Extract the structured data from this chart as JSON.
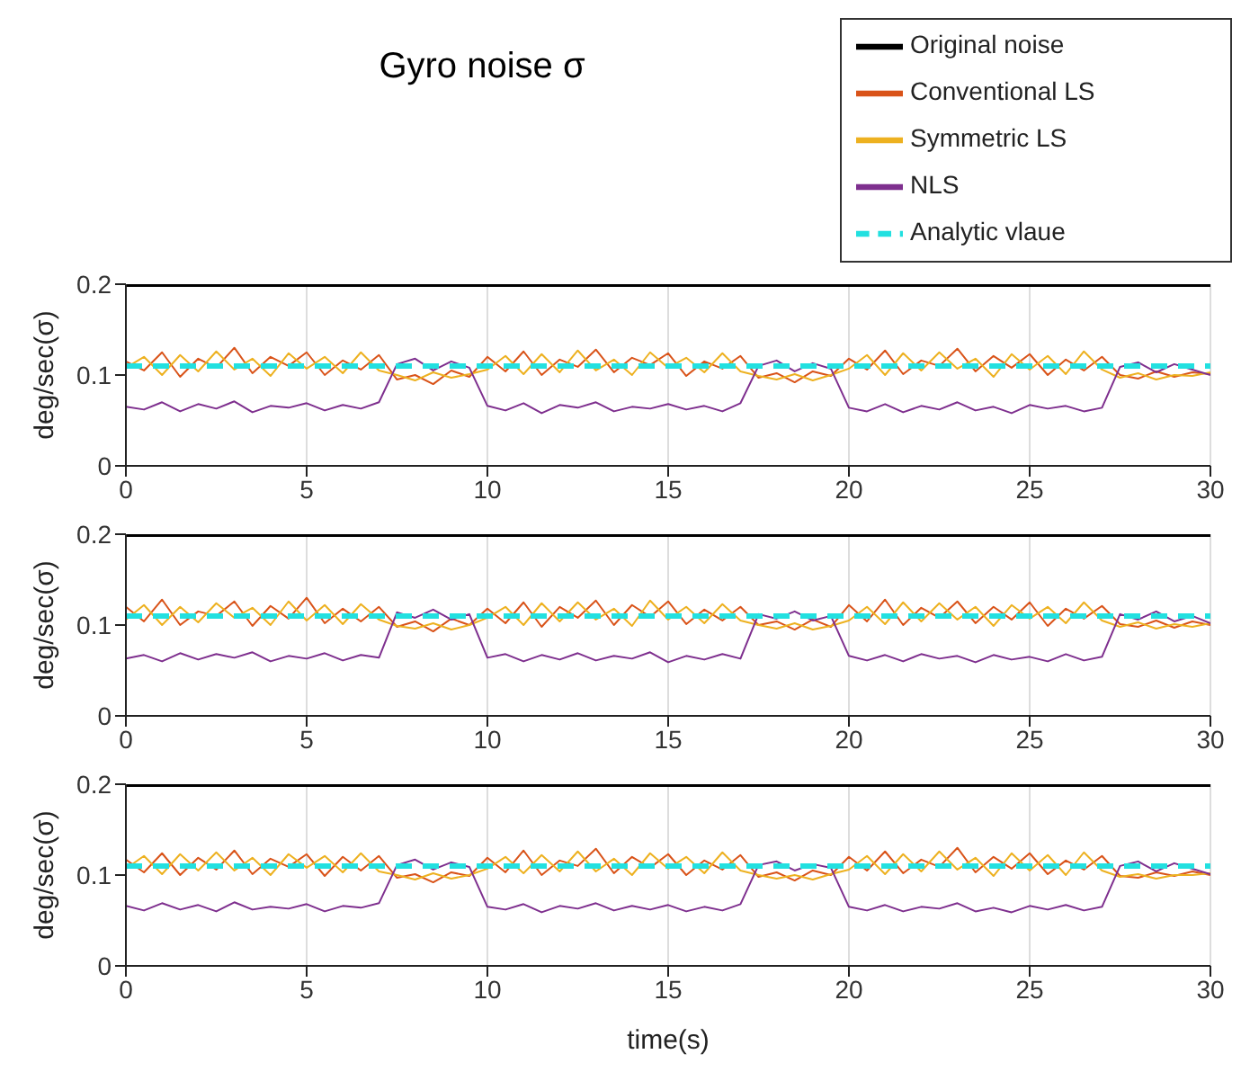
{
  "chart_data": [
    {
      "type": "line",
      "title": "Gyro noise σ",
      "ylabel": "deg/sec(σ)",
      "legend": "top right",
      "grid": "x",
      "xlim": [
        0,
        30
      ],
      "ylim": [
        0,
        0.2
      ],
      "xticks": [
        0,
        5,
        10,
        15,
        20,
        25,
        30
      ],
      "yticks": [
        0,
        0.1,
        0.2
      ],
      "x": [
        0,
        0.5,
        1,
        1.5,
        2,
        2.5,
        3,
        3.5,
        4,
        4.5,
        5,
        5.5,
        6,
        6.5,
        7,
        7.5,
        8,
        8.5,
        9,
        9.5,
        10,
        10.5,
        11,
        11.5,
        12,
        12.5,
        13,
        13.5,
        14,
        14.5,
        15,
        15.5,
        16,
        16.5,
        17,
        17.5,
        18,
        18.5,
        19,
        19.5,
        20,
        20.5,
        21,
        21.5,
        22,
        22.5,
        23,
        23.5,
        24,
        24.5,
        25,
        25.5,
        26,
        26.5,
        27,
        27.5,
        28,
        28.5,
        29,
        29.5,
        30
      ],
      "series": [
        {
          "name": "Original noise",
          "color": "#000000",
          "values": [
            0.2,
            0.2,
            0.2,
            0.2,
            0.2,
            0.2,
            0.2,
            0.2,
            0.2,
            0.2,
            0.2,
            0.2,
            0.2,
            0.2,
            0.2,
            0.2,
            0.2,
            0.2,
            0.2,
            0.2,
            0.2,
            0.2,
            0.2,
            0.2,
            0.2,
            0.2,
            0.2,
            0.2,
            0.2,
            0.2,
            0.2,
            0.2,
            0.2,
            0.2,
            0.2,
            0.2,
            0.2,
            0.2,
            0.2,
            0.2,
            0.2,
            0.2,
            0.2,
            0.2,
            0.2,
            0.2,
            0.2,
            0.2,
            0.2,
            0.2,
            0.2,
            0.2,
            0.2,
            0.2,
            0.2,
            0.2,
            0.2,
            0.2,
            0.2,
            0.2,
            0.2
          ]
        },
        {
          "name": "Conventional LS",
          "color": "#d95319",
          "values": [
            0.115,
            0.105,
            0.125,
            0.098,
            0.118,
            0.108,
            0.13,
            0.102,
            0.12,
            0.11,
            0.125,
            0.1,
            0.116,
            0.106,
            0.122,
            0.095,
            0.1,
            0.09,
            0.105,
            0.098,
            0.12,
            0.104,
            0.126,
            0.1,
            0.117,
            0.109,
            0.128,
            0.103,
            0.119,
            0.111,
            0.124,
            0.099,
            0.115,
            0.107,
            0.121,
            0.097,
            0.102,
            0.092,
            0.104,
            0.099,
            0.118,
            0.106,
            0.127,
            0.101,
            0.116,
            0.11,
            0.129,
            0.104,
            0.121,
            0.108,
            0.123,
            0.1,
            0.117,
            0.105,
            0.12,
            0.1,
            0.096,
            0.104,
            0.098,
            0.103,
            0.101
          ]
        },
        {
          "name": "Symmetric LS",
          "color": "#edb120",
          "values": [
            0.108,
            0.12,
            0.1,
            0.122,
            0.104,
            0.126,
            0.106,
            0.118,
            0.099,
            0.124,
            0.107,
            0.12,
            0.102,
            0.125,
            0.105,
            0.1,
            0.094,
            0.103,
            0.097,
            0.101,
            0.106,
            0.121,
            0.101,
            0.123,
            0.103,
            0.127,
            0.105,
            0.117,
            0.1,
            0.125,
            0.108,
            0.119,
            0.103,
            0.124,
            0.104,
            0.099,
            0.095,
            0.101,
            0.094,
            0.1,
            0.107,
            0.122,
            0.1,
            0.124,
            0.105,
            0.125,
            0.107,
            0.118,
            0.098,
            0.123,
            0.106,
            0.121,
            0.101,
            0.126,
            0.106,
            0.097,
            0.102,
            0.095,
            0.1,
            0.099,
            0.103
          ]
        },
        {
          "name": "NLS",
          "color": "#7e2f8e",
          "values": [
            0.065,
            0.062,
            0.07,
            0.06,
            0.068,
            0.063,
            0.071,
            0.059,
            0.066,
            0.064,
            0.069,
            0.061,
            0.067,
            0.063,
            0.07,
            0.112,
            0.118,
            0.105,
            0.115,
            0.108,
            0.066,
            0.061,
            0.069,
            0.058,
            0.067,
            0.064,
            0.07,
            0.06,
            0.065,
            0.063,
            0.068,
            0.062,
            0.066,
            0.06,
            0.069,
            0.11,
            0.116,
            0.104,
            0.113,
            0.107,
            0.064,
            0.06,
            0.068,
            0.059,
            0.066,
            0.062,
            0.07,
            0.061,
            0.065,
            0.058,
            0.067,
            0.063,
            0.066,
            0.06,
            0.064,
            0.109,
            0.114,
            0.103,
            0.112,
            0.106,
            0.1
          ]
        },
        {
          "name": "Analytic vlaue",
          "color": "#22e0e0",
          "line_style": "dashed",
          "values": [
            0.11,
            0.11,
            0.11,
            0.11,
            0.11,
            0.11,
            0.11,
            0.11,
            0.11,
            0.11,
            0.11,
            0.11,
            0.11,
            0.11,
            0.11,
            0.11,
            0.11,
            0.11,
            0.11,
            0.11,
            0.11,
            0.11,
            0.11,
            0.11,
            0.11,
            0.11,
            0.11,
            0.11,
            0.11,
            0.11,
            0.11,
            0.11,
            0.11,
            0.11,
            0.11,
            0.11,
            0.11,
            0.11,
            0.11,
            0.11,
            0.11,
            0.11,
            0.11,
            0.11,
            0.11,
            0.11,
            0.11,
            0.11,
            0.11,
            0.11,
            0.11,
            0.11,
            0.11,
            0.11,
            0.11,
            0.11,
            0.11,
            0.11,
            0.11,
            0.11,
            0.11
          ]
        }
      ]
    },
    {
      "type": "line",
      "ylabel": "deg/sec(σ)",
      "grid": "x",
      "xlim": [
        0,
        30
      ],
      "ylim": [
        0,
        0.2
      ],
      "xticks": [
        0,
        5,
        10,
        15,
        20,
        25,
        30
      ],
      "yticks": [
        0,
        0.1,
        0.2
      ],
      "x": [
        0,
        0.5,
        1,
        1.5,
        2,
        2.5,
        3,
        3.5,
        4,
        4.5,
        5,
        5.5,
        6,
        6.5,
        7,
        7.5,
        8,
        8.5,
        9,
        9.5,
        10,
        10.5,
        11,
        11.5,
        12,
        12.5,
        13,
        13.5,
        14,
        14.5,
        15,
        15.5,
        16,
        16.5,
        17,
        17.5,
        18,
        18.5,
        19,
        19.5,
        20,
        20.5,
        21,
        21.5,
        22,
        22.5,
        23,
        23.5,
        24,
        24.5,
        25,
        25.5,
        26,
        26.5,
        27,
        27.5,
        28,
        28.5,
        29,
        29.5,
        30
      ],
      "series": [
        {
          "color": "#000000",
          "values": [
            0.2,
            0.2,
            0.2,
            0.2,
            0.2,
            0.2,
            0.2,
            0.2,
            0.2,
            0.2,
            0.2,
            0.2,
            0.2,
            0.2,
            0.2,
            0.2,
            0.2,
            0.2,
            0.2,
            0.2,
            0.2,
            0.2,
            0.2,
            0.2,
            0.2,
            0.2,
            0.2,
            0.2,
            0.2,
            0.2,
            0.2,
            0.2,
            0.2,
            0.2,
            0.2,
            0.2,
            0.2,
            0.2,
            0.2,
            0.2,
            0.2,
            0.2,
            0.2,
            0.2,
            0.2,
            0.2,
            0.2,
            0.2,
            0.2,
            0.2,
            0.2,
            0.2,
            0.2,
            0.2,
            0.2,
            0.2,
            0.2,
            0.2,
            0.2,
            0.2,
            0.2
          ]
        },
        {
          "color": "#d95319",
          "values": [
            0.12,
            0.104,
            0.128,
            0.1,
            0.115,
            0.11,
            0.126,
            0.099,
            0.121,
            0.107,
            0.13,
            0.102,
            0.118,
            0.104,
            0.12,
            0.098,
            0.104,
            0.093,
            0.107,
            0.1,
            0.118,
            0.102,
            0.125,
            0.098,
            0.12,
            0.108,
            0.127,
            0.1,
            0.122,
            0.109,
            0.126,
            0.101,
            0.117,
            0.105,
            0.12,
            0.1,
            0.104,
            0.095,
            0.106,
            0.098,
            0.122,
            0.104,
            0.128,
            0.1,
            0.119,
            0.108,
            0.126,
            0.102,
            0.12,
            0.106,
            0.125,
            0.099,
            0.118,
            0.107,
            0.121,
            0.101,
            0.098,
            0.105,
            0.097,
            0.104,
            0.1
          ]
        },
        {
          "color": "#edb120",
          "values": [
            0.106,
            0.122,
            0.1,
            0.12,
            0.103,
            0.124,
            0.108,
            0.119,
            0.1,
            0.126,
            0.105,
            0.122,
            0.101,
            0.123,
            0.106,
            0.099,
            0.096,
            0.102,
            0.095,
            0.1,
            0.108,
            0.12,
            0.1,
            0.124,
            0.104,
            0.125,
            0.106,
            0.118,
            0.099,
            0.127,
            0.106,
            0.12,
            0.102,
            0.123,
            0.105,
            0.1,
            0.096,
            0.102,
            0.095,
            0.099,
            0.105,
            0.12,
            0.101,
            0.125,
            0.104,
            0.124,
            0.106,
            0.12,
            0.099,
            0.122,
            0.107,
            0.12,
            0.102,
            0.125,
            0.105,
            0.098,
            0.103,
            0.096,
            0.101,
            0.098,
            0.102
          ]
        },
        {
          "color": "#7e2f8e",
          "values": [
            0.063,
            0.067,
            0.06,
            0.069,
            0.062,
            0.068,
            0.064,
            0.07,
            0.06,
            0.066,
            0.063,
            0.069,
            0.061,
            0.067,
            0.064,
            0.114,
            0.108,
            0.117,
            0.106,
            0.112,
            0.064,
            0.068,
            0.06,
            0.067,
            0.062,
            0.069,
            0.061,
            0.066,
            0.063,
            0.07,
            0.059,
            0.066,
            0.062,
            0.068,
            0.063,
            0.112,
            0.107,
            0.115,
            0.105,
            0.11,
            0.066,
            0.061,
            0.067,
            0.06,
            0.068,
            0.063,
            0.066,
            0.059,
            0.067,
            0.062,
            0.065,
            0.06,
            0.068,
            0.061,
            0.065,
            0.112,
            0.106,
            0.115,
            0.104,
            0.11,
            0.102
          ]
        },
        {
          "color": "#22e0e0",
          "line_style": "dashed",
          "values": [
            0.11,
            0.11,
            0.11,
            0.11,
            0.11,
            0.11,
            0.11,
            0.11,
            0.11,
            0.11,
            0.11,
            0.11,
            0.11,
            0.11,
            0.11,
            0.11,
            0.11,
            0.11,
            0.11,
            0.11,
            0.11,
            0.11,
            0.11,
            0.11,
            0.11,
            0.11,
            0.11,
            0.11,
            0.11,
            0.11,
            0.11,
            0.11,
            0.11,
            0.11,
            0.11,
            0.11,
            0.11,
            0.11,
            0.11,
            0.11,
            0.11,
            0.11,
            0.11,
            0.11,
            0.11,
            0.11,
            0.11,
            0.11,
            0.11,
            0.11,
            0.11,
            0.11,
            0.11,
            0.11,
            0.11,
            0.11,
            0.11,
            0.11,
            0.11,
            0.11,
            0.11
          ]
        }
      ]
    },
    {
      "type": "line",
      "ylabel": "deg/sec(σ)",
      "xlabel": "time(s)",
      "grid": "x",
      "xlim": [
        0,
        30
      ],
      "ylim": [
        0,
        0.2
      ],
      "xticks": [
        0,
        5,
        10,
        15,
        20,
        25,
        30
      ],
      "yticks": [
        0,
        0.1,
        0.2
      ],
      "x": [
        0,
        0.5,
        1,
        1.5,
        2,
        2.5,
        3,
        3.5,
        4,
        4.5,
        5,
        5.5,
        6,
        6.5,
        7,
        7.5,
        8,
        8.5,
        9,
        9.5,
        10,
        10.5,
        11,
        11.5,
        12,
        12.5,
        13,
        13.5,
        14,
        14.5,
        15,
        15.5,
        16,
        16.5,
        17,
        17.5,
        18,
        18.5,
        19,
        19.5,
        20,
        20.5,
        21,
        21.5,
        22,
        22.5,
        23,
        23.5,
        24,
        24.5,
        25,
        25.5,
        26,
        26.5,
        27,
        27.5,
        28,
        28.5,
        29,
        29.5,
        30
      ],
      "series": [
        {
          "color": "#000000",
          "values": [
            0.2,
            0.2,
            0.2,
            0.2,
            0.2,
            0.2,
            0.2,
            0.2,
            0.2,
            0.2,
            0.2,
            0.2,
            0.2,
            0.2,
            0.2,
            0.2,
            0.2,
            0.2,
            0.2,
            0.2,
            0.2,
            0.2,
            0.2,
            0.2,
            0.2,
            0.2,
            0.2,
            0.2,
            0.2,
            0.2,
            0.2,
            0.2,
            0.2,
            0.2,
            0.2,
            0.2,
            0.2,
            0.2,
            0.2,
            0.2,
            0.2,
            0.2,
            0.2,
            0.2,
            0.2,
            0.2,
            0.2,
            0.2,
            0.2,
            0.2,
            0.2,
            0.2,
            0.2,
            0.2,
            0.2,
            0.2,
            0.2,
            0.2,
            0.2,
            0.2,
            0.2
          ]
        },
        {
          "color": "#d95319",
          "values": [
            0.117,
            0.103,
            0.124,
            0.1,
            0.119,
            0.106,
            0.127,
            0.101,
            0.118,
            0.109,
            0.123,
            0.099,
            0.12,
            0.105,
            0.121,
            0.097,
            0.101,
            0.092,
            0.103,
            0.099,
            0.119,
            0.103,
            0.127,
            0.1,
            0.116,
            0.11,
            0.129,
            0.102,
            0.12,
            0.108,
            0.123,
            0.1,
            0.116,
            0.106,
            0.122,
            0.098,
            0.103,
            0.094,
            0.105,
            0.1,
            0.12,
            0.105,
            0.126,
            0.102,
            0.117,
            0.109,
            0.13,
            0.103,
            0.12,
            0.107,
            0.124,
            0.101,
            0.116,
            0.106,
            0.121,
            0.099,
            0.097,
            0.103,
            0.099,
            0.104,
            0.1
          ]
        },
        {
          "color": "#edb120",
          "values": [
            0.107,
            0.121,
            0.101,
            0.123,
            0.105,
            0.125,
            0.105,
            0.119,
            0.1,
            0.123,
            0.108,
            0.121,
            0.103,
            0.124,
            0.104,
            0.1,
            0.095,
            0.102,
            0.096,
            0.1,
            0.107,
            0.12,
            0.102,
            0.122,
            0.104,
            0.126,
            0.104,
            0.118,
            0.1,
            0.124,
            0.107,
            0.12,
            0.102,
            0.125,
            0.105,
            0.1,
            0.096,
            0.1,
            0.095,
            0.101,
            0.106,
            0.121,
            0.101,
            0.123,
            0.104,
            0.126,
            0.106,
            0.119,
            0.099,
            0.124,
            0.105,
            0.122,
            0.1,
            0.125,
            0.105,
            0.098,
            0.101,
            0.096,
            0.1,
            0.1,
            0.102
          ]
        },
        {
          "color": "#7e2f8e",
          "values": [
            0.066,
            0.061,
            0.069,
            0.062,
            0.067,
            0.06,
            0.07,
            0.062,
            0.065,
            0.063,
            0.068,
            0.06,
            0.066,
            0.064,
            0.069,
            0.111,
            0.117,
            0.106,
            0.114,
            0.109,
            0.065,
            0.062,
            0.068,
            0.059,
            0.066,
            0.063,
            0.069,
            0.061,
            0.066,
            0.062,
            0.067,
            0.06,
            0.065,
            0.061,
            0.068,
            0.111,
            0.115,
            0.105,
            0.112,
            0.108,
            0.065,
            0.061,
            0.067,
            0.06,
            0.065,
            0.063,
            0.069,
            0.06,
            0.064,
            0.059,
            0.066,
            0.062,
            0.067,
            0.061,
            0.065,
            0.11,
            0.115,
            0.104,
            0.113,
            0.107,
            0.101
          ]
        },
        {
          "color": "#22e0e0",
          "line_style": "dashed",
          "values": [
            0.11,
            0.11,
            0.11,
            0.11,
            0.11,
            0.11,
            0.11,
            0.11,
            0.11,
            0.11,
            0.11,
            0.11,
            0.11,
            0.11,
            0.11,
            0.11,
            0.11,
            0.11,
            0.11,
            0.11,
            0.11,
            0.11,
            0.11,
            0.11,
            0.11,
            0.11,
            0.11,
            0.11,
            0.11,
            0.11,
            0.11,
            0.11,
            0.11,
            0.11,
            0.11,
            0.11,
            0.11,
            0.11,
            0.11,
            0.11,
            0.11,
            0.11,
            0.11,
            0.11,
            0.11,
            0.11,
            0.11,
            0.11,
            0.11,
            0.11,
            0.11,
            0.11,
            0.11,
            0.11,
            0.11,
            0.11,
            0.11,
            0.11,
            0.11,
            0.11,
            0.11
          ]
        }
      ]
    }
  ]
}
